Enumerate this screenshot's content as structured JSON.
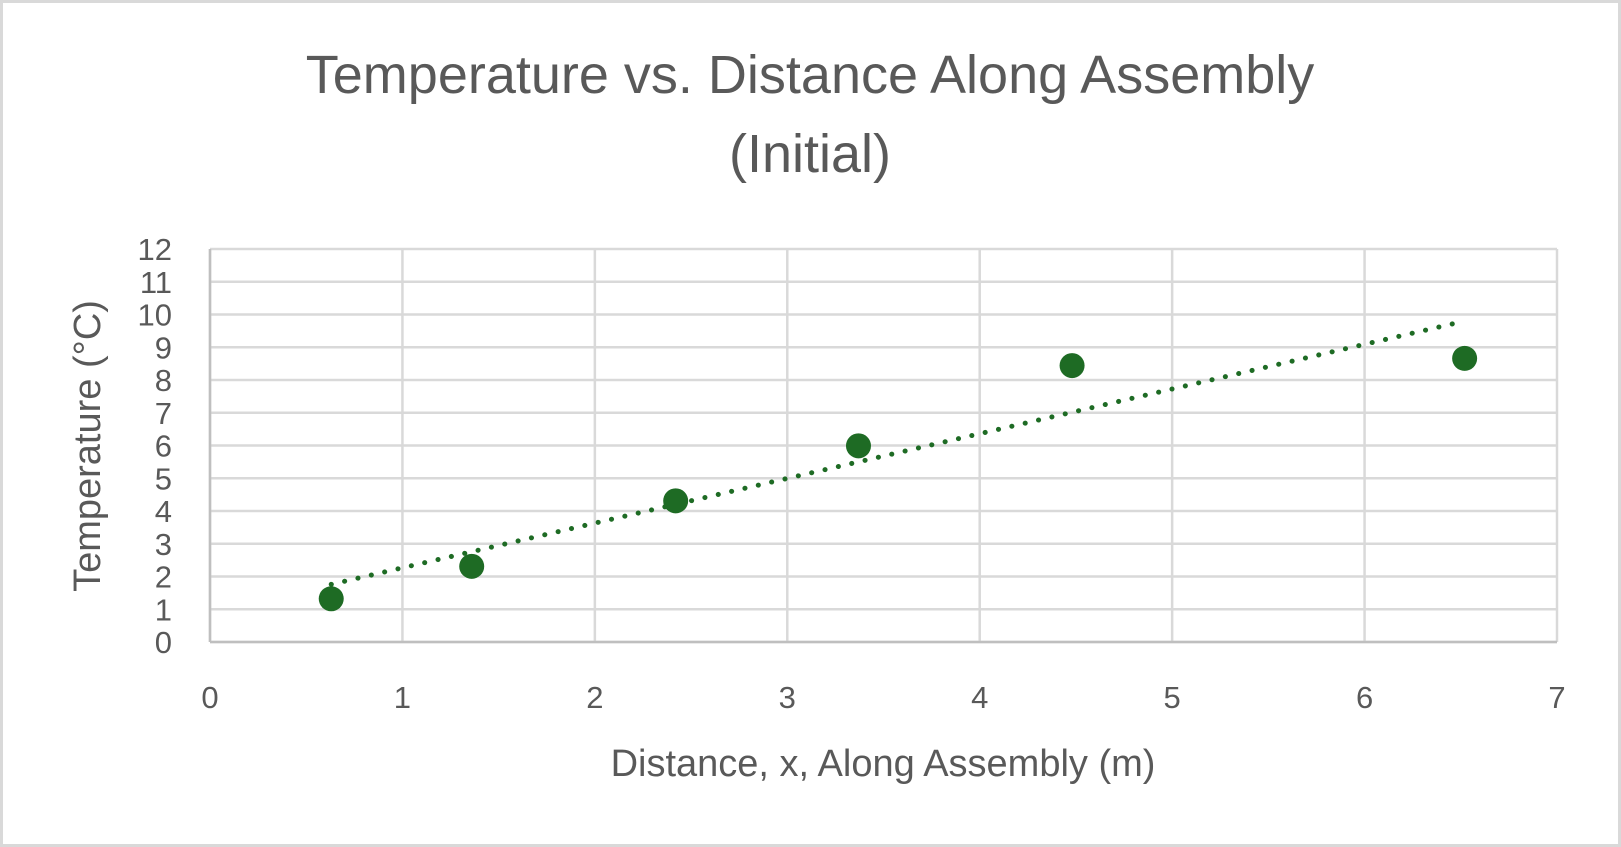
{
  "chart_data": {
    "type": "scatter",
    "title": "Temperature vs. Distance Along Assembly (Initial)",
    "title_lines": [
      "Temperature vs. Distance Along Assembly",
      "(Initial)"
    ],
    "xlabel": "Distance, x, Along Assembly (m)",
    "ylabel": "Temperature (°C)",
    "xlim": [
      0,
      7
    ],
    "ylim": [
      0,
      12
    ],
    "x_ticks": [
      "0",
      "1",
      "2",
      "3",
      "4",
      "5",
      "6",
      "7"
    ],
    "y_ticks": [
      "0",
      "1",
      "2",
      "3",
      "4",
      "5",
      "6",
      "7",
      "8",
      "9",
      "10",
      "11",
      "12"
    ],
    "grid": true,
    "legend": null,
    "series": [
      {
        "name": "Temperature",
        "color": "#1e6b24",
        "marker": "circle",
        "x": [
          0.63,
          1.36,
          2.42,
          3.37,
          4.48,
          6.52
        ],
        "y": [
          1.32,
          2.31,
          4.31,
          5.99,
          8.44,
          8.66
        ]
      }
    ],
    "trendline": {
      "type": "linear",
      "style": "dotted",
      "color": "#1e6b24",
      "slope": 1.365,
      "intercept": 0.9,
      "x_range": [
        0.63,
        6.52
      ]
    }
  },
  "colors": {
    "text": "#595959",
    "gridline": "#d9d9d9",
    "axis_line": "#bfbfbf",
    "border": "#d9d9d9",
    "marker": "#1e6b24"
  }
}
